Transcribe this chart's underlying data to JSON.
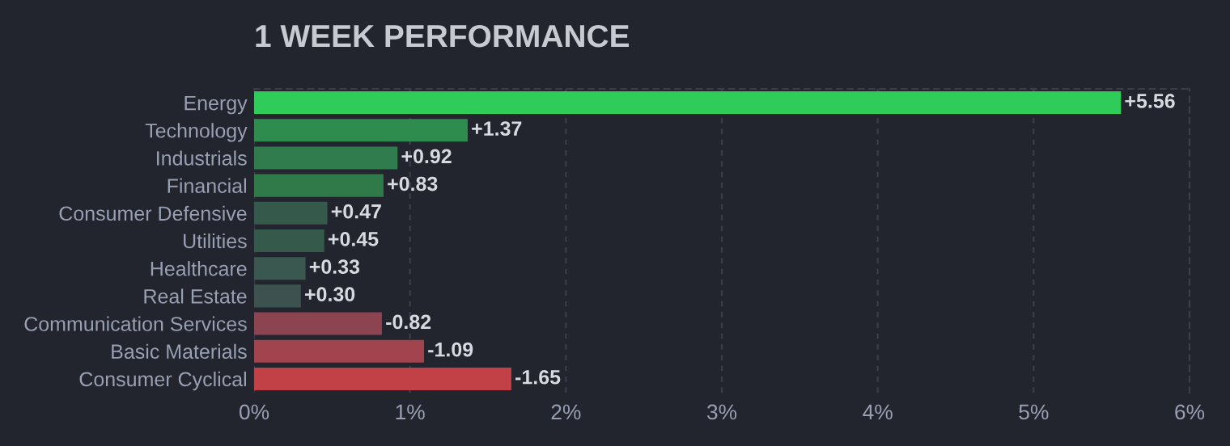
{
  "chart_data": {
    "type": "bar",
    "orientation": "horizontal",
    "title": "1 WEEK PERFORMANCE",
    "categories": [
      "Energy",
      "Technology",
      "Industrials",
      "Financial",
      "Consumer Defensive",
      "Utilities",
      "Healthcare",
      "Real Estate",
      "Communication Services",
      "Basic Materials",
      "Consumer Cyclical"
    ],
    "values": [
      5.56,
      1.37,
      0.92,
      0.83,
      0.47,
      0.45,
      0.33,
      0.3,
      -0.82,
      -1.09,
      -1.65
    ],
    "base": [
      0,
      0,
      0,
      0,
      0,
      0,
      0,
      0,
      0.82,
      1.09,
      1.65
    ],
    "value_labels": [
      "+5.56",
      "+1.37",
      "+0.92",
      "+0.83",
      "+0.47",
      "+0.45",
      "+0.33",
      "+0.30",
      "-0.82",
      "-1.09",
      "-1.65"
    ],
    "colors": [
      "#30cc5a",
      "#2f8c4f",
      "#307c4c",
      "#307a4a",
      "#35594a",
      "#355a4b",
      "#3a5750",
      "#3d524f",
      "#8b4450",
      "#a1444d",
      "#c24147"
    ],
    "xlim": [
      0,
      6
    ],
    "xticks": [
      {
        "value": 0,
        "label": "0%"
      },
      {
        "value": 1,
        "label": "1%"
      },
      {
        "value": 2,
        "label": "2%"
      },
      {
        "value": 3,
        "label": "3%"
      },
      {
        "value": 4,
        "label": "4%"
      },
      {
        "value": 5,
        "label": "5%"
      },
      {
        "value": 6,
        "label": "6%"
      }
    ],
    "grid": "x",
    "legend": false
  }
}
